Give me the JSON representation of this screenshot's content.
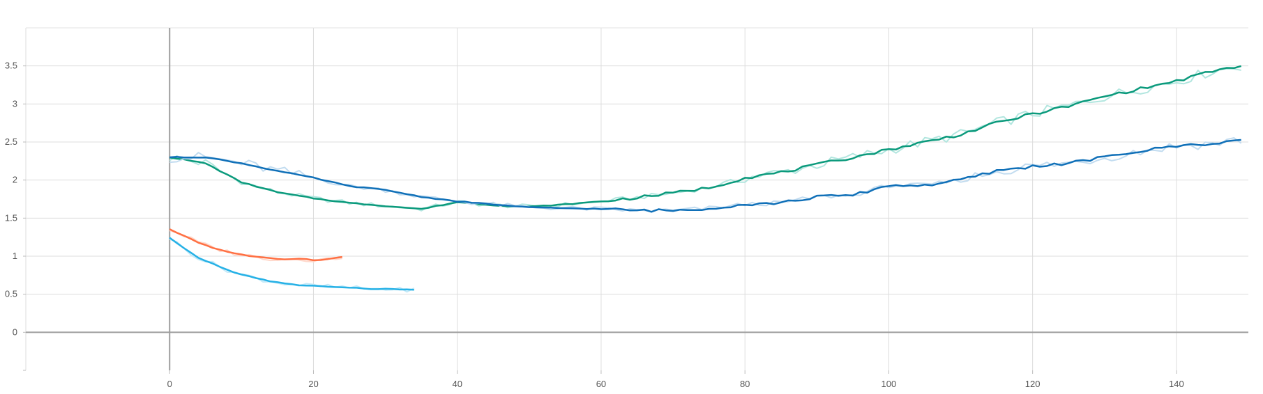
{
  "chart_data": {
    "type": "line",
    "title": "",
    "xlabel": "",
    "ylabel": "",
    "xlim": [
      -20,
      150
    ],
    "ylim": [
      -0.5,
      4
    ],
    "x_ticks": [
      0,
      20,
      40,
      60,
      80,
      100,
      120,
      140
    ],
    "x_tick_labels": [
      "0",
      "20",
      "40",
      "60",
      "80",
      "100",
      "120",
      "140"
    ],
    "y_ticks": [
      0,
      0.5,
      1,
      1.5,
      2,
      2.5,
      3,
      3.5
    ],
    "y_tick_labels": [
      "0",
      "0.5",
      "1",
      "1.5",
      "2",
      "2.5",
      "3",
      "3.5"
    ],
    "grid": true,
    "legend": "none",
    "series": [
      {
        "color": "#0b9a7c",
        "raw_color": "#b2e6df",
        "x": [
          0,
          5,
          10,
          15,
          20,
          25,
          30,
          35,
          40,
          45,
          50,
          55,
          60,
          65,
          70,
          75,
          80,
          85,
          90,
          95,
          100,
          105,
          110,
          115,
          120,
          125,
          130,
          135,
          140,
          145,
          149
        ],
        "y": [
          2.3,
          2.22,
          1.97,
          1.84,
          1.76,
          1.7,
          1.66,
          1.62,
          1.71,
          1.67,
          1.65,
          1.68,
          1.72,
          1.77,
          1.83,
          1.9,
          2.03,
          2.1,
          2.2,
          2.3,
          2.4,
          2.5,
          2.6,
          2.75,
          2.87,
          2.97,
          3.1,
          3.2,
          3.3,
          3.43,
          3.5
        ]
      },
      {
        "color": "#1070b8",
        "raw_color": "#c2dcf0",
        "x": [
          0,
          5,
          10,
          15,
          20,
          25,
          30,
          35,
          40,
          45,
          50,
          55,
          60,
          65,
          70,
          75,
          80,
          85,
          90,
          95,
          100,
          105,
          110,
          115,
          120,
          125,
          130,
          135,
          140,
          145,
          149
        ],
        "y": [
          2.3,
          2.3,
          2.22,
          2.12,
          2.03,
          1.92,
          1.87,
          1.78,
          1.72,
          1.68,
          1.64,
          1.63,
          1.62,
          1.6,
          1.6,
          1.63,
          1.68,
          1.7,
          1.78,
          1.8,
          1.93,
          1.93,
          2.0,
          2.12,
          2.18,
          2.22,
          2.3,
          2.38,
          2.45,
          2.48,
          2.53
        ]
      },
      {
        "color": "#ff7043",
        "raw_color": "#ffd8cb",
        "x": [
          0,
          2,
          4,
          6,
          8,
          10,
          12,
          14,
          16,
          18,
          20,
          22,
          24
        ],
        "y": [
          1.35,
          1.27,
          1.18,
          1.11,
          1.06,
          1.02,
          0.99,
          0.97,
          0.96,
          0.97,
          0.95,
          0.96,
          0.99
        ]
      },
      {
        "color": "#26b1e6",
        "raw_color": "#c3e9f8",
        "x": [
          0,
          2,
          4,
          6,
          8,
          10,
          12,
          14,
          16,
          18,
          20,
          22,
          24,
          26,
          28,
          30,
          32,
          34
        ],
        "y": [
          1.24,
          1.1,
          0.98,
          0.9,
          0.82,
          0.76,
          0.71,
          0.67,
          0.64,
          0.62,
          0.61,
          0.6,
          0.59,
          0.58,
          0.57,
          0.57,
          0.56,
          0.56
        ]
      }
    ]
  }
}
